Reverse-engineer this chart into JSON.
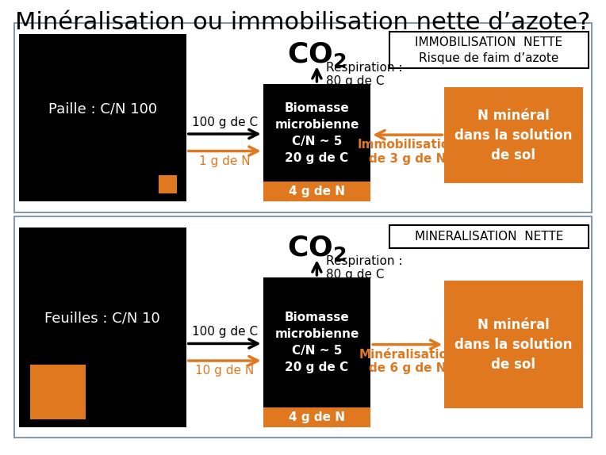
{
  "title": "Minéralisation ou immobilisation nette d’azote?",
  "title_fontsize": 22,
  "black": "#000000",
  "orange": "#E07820",
  "white": "#ffffff",
  "gray_border": "#8899aa",
  "panel1": {
    "border_label_line1": "IMMOBILISATION  NETTE",
    "border_label_line2": "Risque de faim d’azote",
    "source_label": "Paille : C/N 100",
    "source_orange_small": true,
    "source_orange_large": false,
    "arrow_c_label": "100 g de C",
    "arrow_n_label": "1 g de N",
    "biomass_n_label": "4 g de N",
    "biomass_text": "Biomasse\nmicrobienne\nC/N ~ 5\n20 g de C",
    "resp_label": "Respiration :\n80 g de C",
    "immob_label": "Immobilisation\nde 3 g de N",
    "n_mineral_label": "N minéral\ndans la solution\nde sol",
    "arrow_direction": "left",
    "immob_color": "#E07820"
  },
  "panel2": {
    "border_label_line1": "MINERALISATION  NETTE",
    "border_label_line2": "",
    "source_label": "Feuilles : C/N 10",
    "source_orange_small": false,
    "source_orange_large": true,
    "arrow_c_label": "100 g de C",
    "arrow_n_label": "10 g de N",
    "biomass_n_label": "4 g de N",
    "biomass_text": "Biomasse\nmicrobienne\nC/N ~ 5\n20 g de C",
    "resp_label": "Respiration :\n80 g de C",
    "immob_label": "Minéralisation\nde 6 g de N",
    "n_mineral_label": "N minéral\ndans la solution\nde sol",
    "arrow_direction": "right",
    "immob_color": "#E07820"
  }
}
